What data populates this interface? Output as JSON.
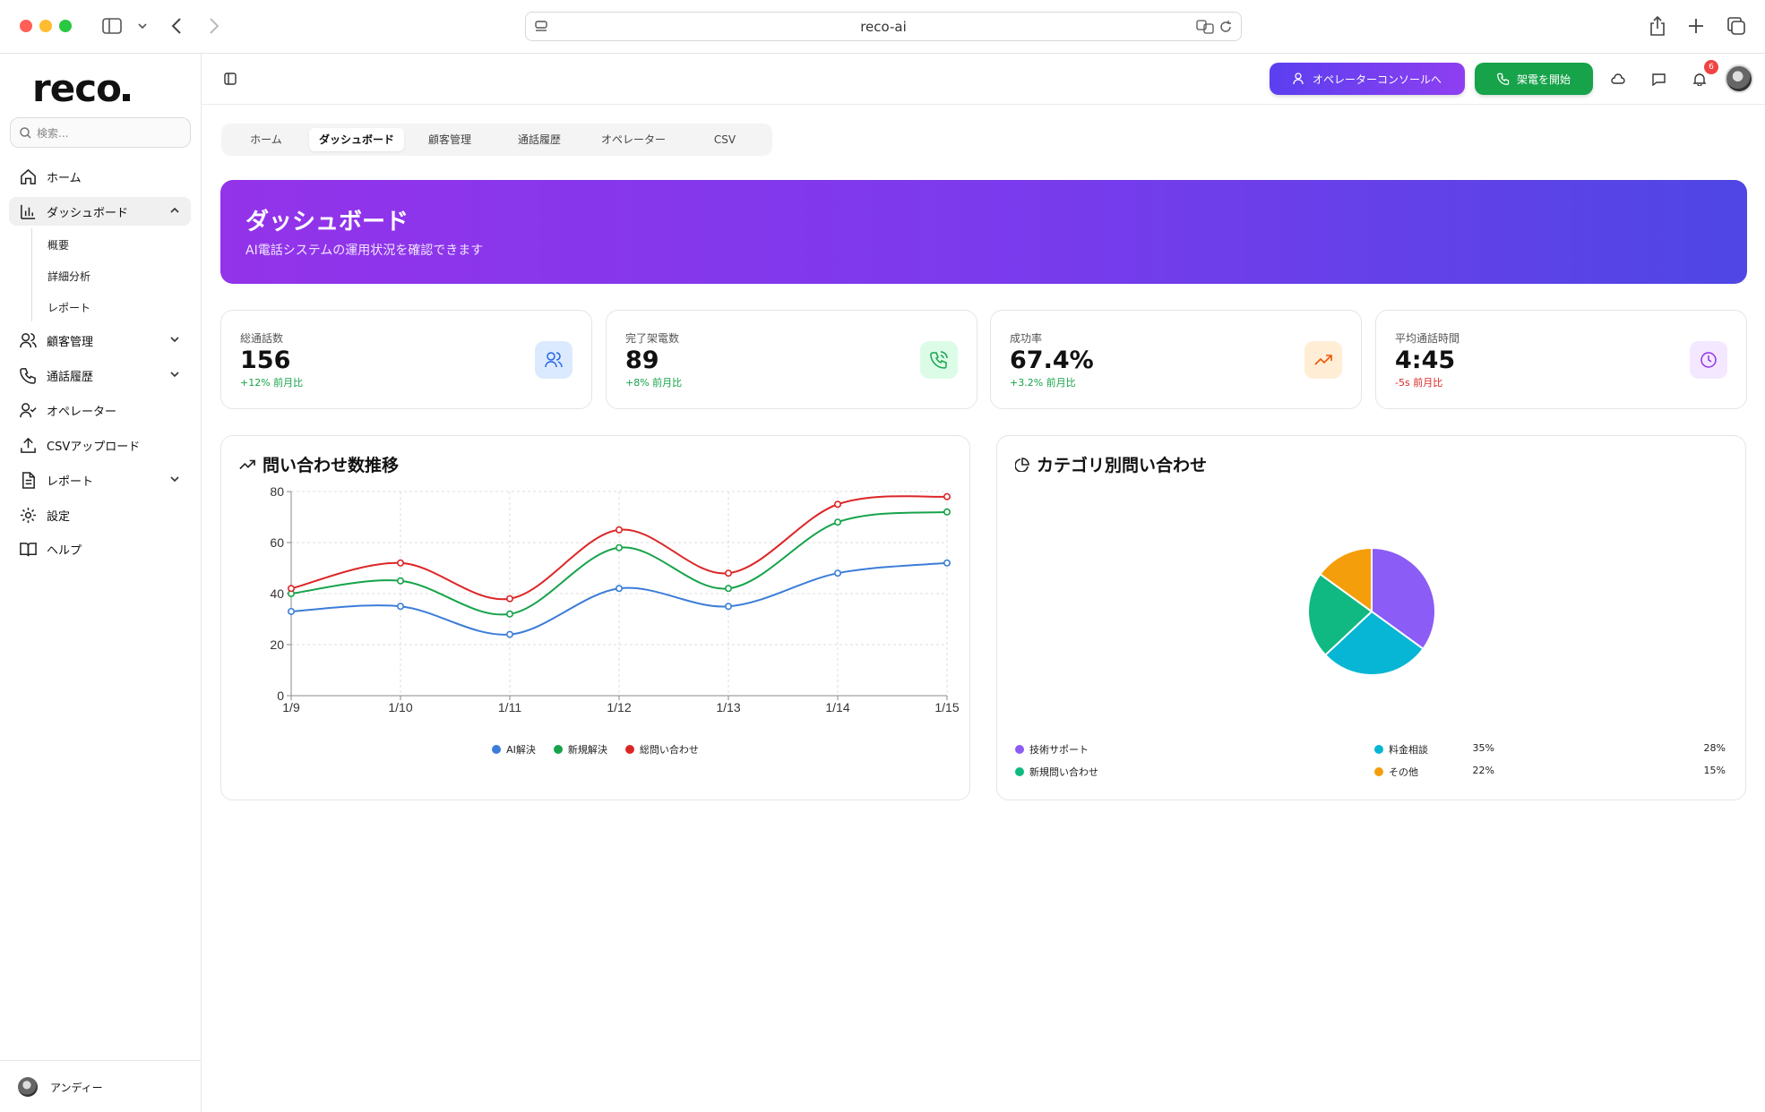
{
  "browser": {
    "url": "reco-ai"
  },
  "sidebar": {
    "logo": "reco",
    "search_placeholder": "検索...",
    "items": [
      {
        "label": "ホーム",
        "icon": "home-icon"
      },
      {
        "label": "ダッシュボード",
        "icon": "bar-chart-icon",
        "active": true,
        "expanded": true
      },
      {
        "label": "顧客管理",
        "icon": "users-icon",
        "has_chevron": true
      },
      {
        "label": "通話履歴",
        "icon": "phone-icon",
        "has_chevron": true
      },
      {
        "label": "オペレーター",
        "icon": "user-check-icon"
      },
      {
        "label": "CSVアップロード",
        "icon": "upload-icon"
      },
      {
        "label": "レポート",
        "icon": "file-text-icon",
        "has_chevron": true
      },
      {
        "label": "設定",
        "icon": "gear-icon"
      },
      {
        "label": "ヘルプ",
        "icon": "book-icon"
      }
    ],
    "sub_items": [
      "概要",
      "詳細分析",
      "レポート"
    ],
    "user_name": "アンディー"
  },
  "topbar": {
    "operator_button": "オペレーターコンソールへ",
    "call_button": "架電を開始",
    "notification_count": "6"
  },
  "tabs": [
    {
      "label": "ホーム"
    },
    {
      "label": "ダッシュボード",
      "active": true
    },
    {
      "label": "顧客管理"
    },
    {
      "label": "通話履歴"
    },
    {
      "label": "オペレーター"
    },
    {
      "label": "CSV"
    }
  ],
  "hero": {
    "title": "ダッシュボード",
    "subtitle": "AI電話システムの運用状況を確認できます"
  },
  "stats": [
    {
      "label": "総通話数",
      "value": "156",
      "change": "+12% 前月比",
      "trend": "up",
      "icon": "users-icon",
      "icon_bg": "#dbeafe",
      "icon_color": "#2563eb"
    },
    {
      "label": "完了架電数",
      "value": "89",
      "change": "+8% 前月比",
      "trend": "up",
      "icon": "phone-call-icon",
      "icon_bg": "#dcfce7",
      "icon_color": "#16a34a"
    },
    {
      "label": "成功率",
      "value": "67.4%",
      "change": "+3.2% 前月比",
      "trend": "up",
      "icon": "trending-up-icon",
      "icon_bg": "#ffedd5",
      "icon_color": "#ea580c"
    },
    {
      "label": "平均通話時間",
      "value": "4:45",
      "change": "-5s 前月比",
      "trend": "down",
      "icon": "clock-icon",
      "icon_bg": "#f3e8ff",
      "icon_color": "#9333ea"
    }
  ],
  "line_panel": {
    "title": "問い合わせ数推移"
  },
  "pie_panel": {
    "title": "カテゴリ別問い合わせ"
  },
  "chart_data": [
    {
      "type": "line",
      "x": [
        "1/9",
        "1/10",
        "1/11",
        "1/12",
        "1/13",
        "1/14",
        "1/15"
      ],
      "ylim": [
        0,
        80
      ],
      "yticks": [
        0,
        20,
        40,
        60,
        80
      ],
      "grid": true,
      "legend": "bottom",
      "series": [
        {
          "name": "AI解決",
          "color": "#3b7dd8",
          "values": [
            33,
            35,
            24,
            42,
            35,
            48,
            52
          ]
        },
        {
          "name": "新規解決",
          "color": "#16a34a",
          "values": [
            40,
            45,
            32,
            58,
            42,
            68,
            72
          ]
        },
        {
          "name": "総問い合わせ",
          "color": "#dc2626",
          "values": [
            42,
            52,
            38,
            65,
            48,
            75,
            78
          ]
        }
      ]
    },
    {
      "type": "pie",
      "legend": "bottom",
      "slices": [
        {
          "name": "技術サポート",
          "value": 35,
          "label": "35%",
          "color": "#8b5cf6"
        },
        {
          "name": "料金相談",
          "value": 28,
          "label": "28%",
          "color": "#06b6d4"
        },
        {
          "name": "新規問い合わせ",
          "value": 22,
          "label": "22%",
          "color": "#10b981"
        },
        {
          "name": "その他",
          "value": 15,
          "label": "15%",
          "color": "#f59e0b"
        }
      ]
    }
  ]
}
